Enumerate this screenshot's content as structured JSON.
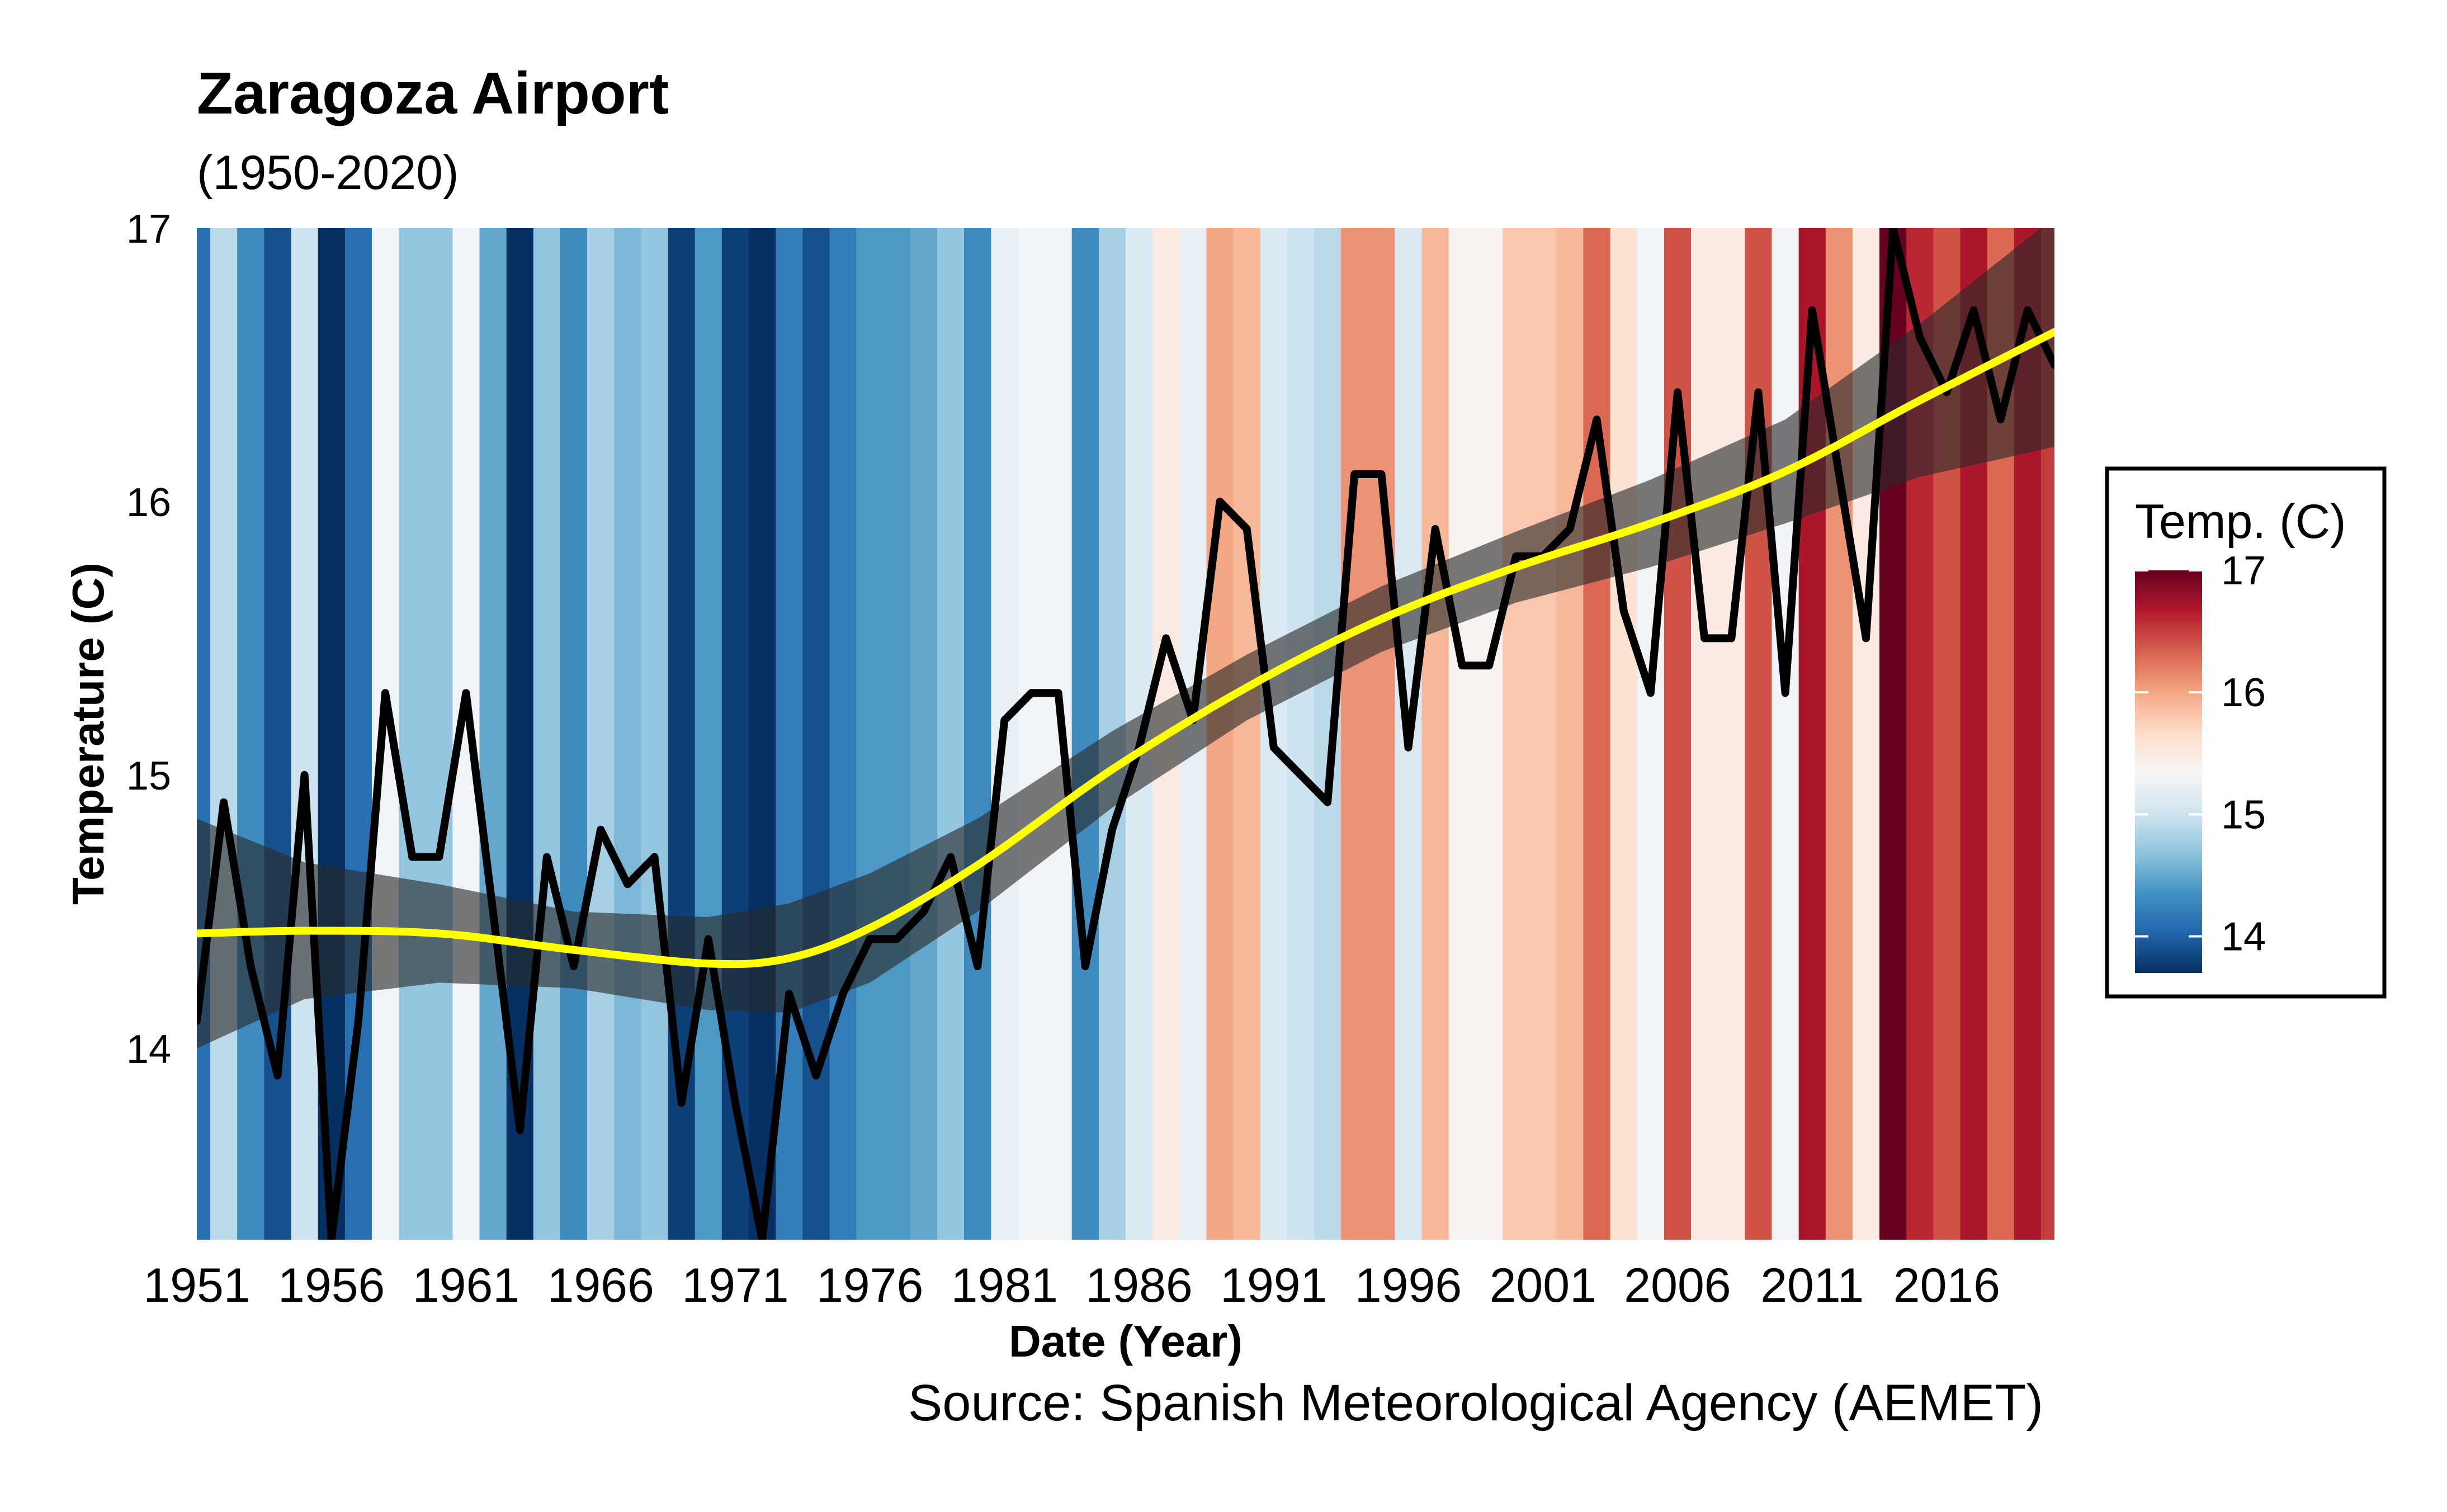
{
  "colors": {
    "trend_line": "#ffff00",
    "trend_band": "#2a2a2a",
    "temp_line": "#000000",
    "scale": [
      "#053061",
      "#2166ac",
      "#4393c3",
      "#92c5de",
      "#d1e5f0",
      "#f7f7f7",
      "#fddbc7",
      "#f4a582",
      "#d6604d",
      "#b2182b",
      "#67001f"
    ]
  },
  "chart_data": {
    "type": "line",
    "title": "Zaragoza Airport",
    "subtitle": "(1950-2020)",
    "xlabel": "Date (Year)",
    "ylabel": "Temperature (C)",
    "caption": "Source: Spanish Meteorological Agency (AEMET)",
    "xlim": [
      1951,
      2020
    ],
    "ylim": [
      13.3,
      17.0
    ],
    "y_ticks": [
      "14",
      "15",
      "16",
      "17"
    ],
    "x_ticks": [
      "1951",
      "1956",
      "1961",
      "1966",
      "1971",
      "1976",
      "1981",
      "1986",
      "1991",
      "1996",
      "2001",
      "2006",
      "2011",
      "2016"
    ],
    "grid": false,
    "background": "warming stripes colored by annual mean temperature",
    "legend": {
      "title": "Temp. (C)",
      "position": "right",
      "ticks": [
        "14",
        "15",
        "16",
        "17"
      ],
      "range": [
        13.7,
        17.0
      ]
    },
    "series": [
      {
        "type": "line",
        "x": [
          1951,
          1952,
          1953,
          1954,
          1955,
          1956,
          1957,
          1958,
          1959,
          1960,
          1961,
          1962,
          1963,
          1964,
          1965,
          1966,
          1967,
          1968,
          1969,
          1970,
          1971,
          1972,
          1973,
          1974,
          1975,
          1976,
          1977,
          1978,
          1979,
          1980,
          1981,
          1982,
          1983,
          1984,
          1985,
          1986,
          1987,
          1988,
          1989,
          1990,
          1991,
          1992,
          1993,
          1994,
          1995,
          1996,
          1997,
          1998,
          1999,
          2000,
          2001,
          2002,
          2003,
          2004,
          2005,
          2006,
          2007,
          2008,
          2009,
          2010,
          2011,
          2012,
          2013,
          2014,
          2015,
          2016,
          2017,
          2018,
          2019,
          2020
        ],
        "values": [
          14.1,
          14.9,
          14.3,
          13.9,
          15.0,
          13.3,
          14.1,
          15.3,
          14.7,
          14.7,
          15.3,
          14.5,
          13.7,
          14.7,
          14.3,
          14.8,
          14.6,
          14.7,
          13.8,
          14.4,
          13.8,
          13.3,
          14.2,
          13.9,
          14.2,
          14.4,
          14.4,
          14.5,
          14.7,
          14.3,
          15.2,
          15.3,
          15.3,
          14.3,
          14.8,
          15.1,
          15.5,
          15.2,
          16.0,
          15.9,
          15.1,
          15.0,
          14.9,
          16.1,
          16.1,
          15.1,
          15.9,
          15.4,
          15.4,
          15.8,
          15.8,
          15.9,
          16.3,
          15.6,
          15.3,
          16.4,
          15.5,
          15.5,
          16.4,
          15.3,
          16.7,
          16.1,
          15.5,
          17.0,
          16.6,
          16.4,
          16.7,
          16.3,
          16.7,
          16.5
        ]
      },
      {
        "type": "smooth",
        "x": [
          1951,
          1955,
          1960,
          1965,
          1970,
          1973,
          1976,
          1980,
          1985,
          1990,
          1995,
          2000,
          2005,
          2010,
          2015,
          2020
        ],
        "values": [
          14.42,
          14.43,
          14.42,
          14.36,
          14.31,
          14.33,
          14.44,
          14.67,
          15.02,
          15.32,
          15.57,
          15.76,
          15.92,
          16.11,
          16.37,
          16.62
        ],
        "lower": [
          14.0,
          14.18,
          14.24,
          14.22,
          14.14,
          14.13,
          14.24,
          14.5,
          14.88,
          15.2,
          15.45,
          15.63,
          15.76,
          15.92,
          16.09,
          16.2
        ],
        "upper": [
          14.84,
          14.68,
          14.6,
          14.5,
          14.48,
          14.53,
          14.64,
          14.84,
          15.16,
          15.44,
          15.69,
          15.89,
          16.08,
          16.3,
          16.65,
          17.04
        ]
      }
    ]
  }
}
